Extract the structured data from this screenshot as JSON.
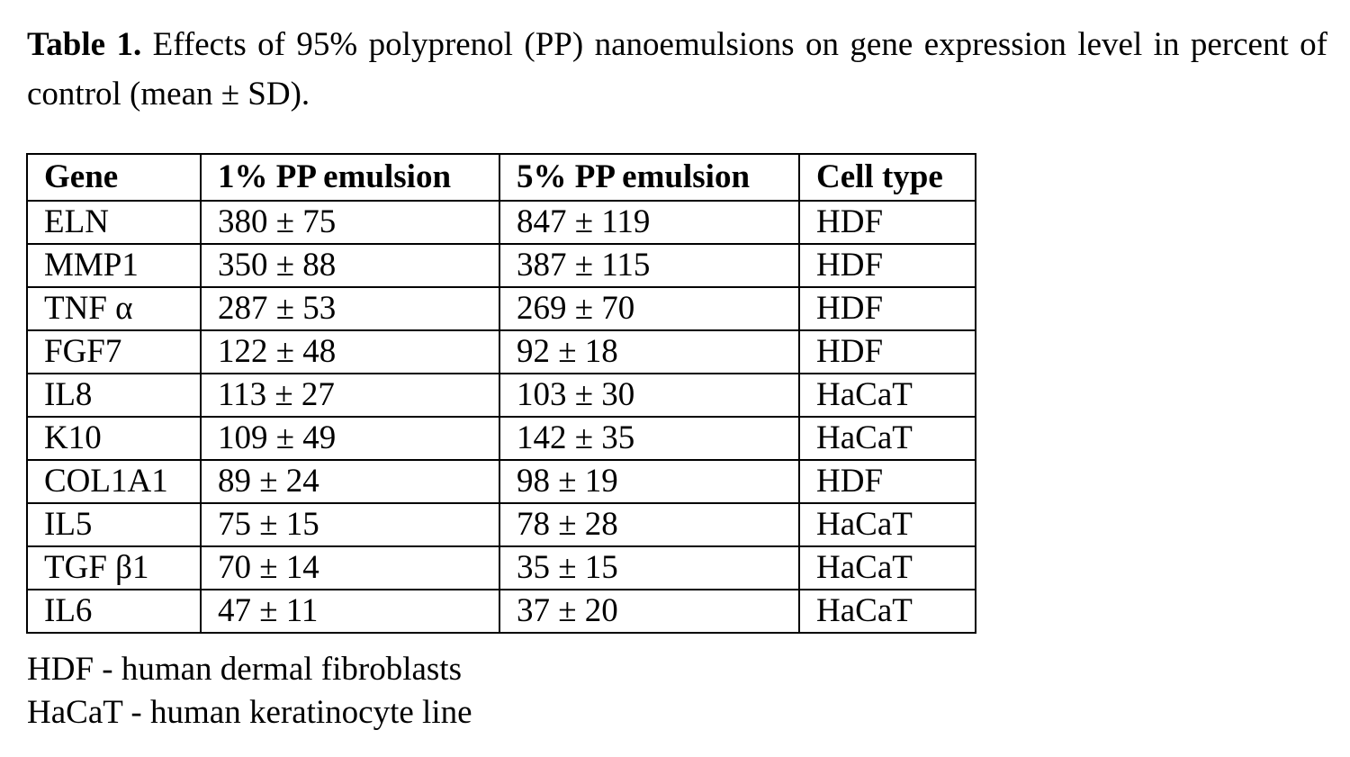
{
  "caption": {
    "label": "Table 1.",
    "text": " Effects of 95% polyprenol (PP) nanoemulsions on gene expression level in percent of control (mean ± SD)."
  },
  "table": {
    "headers": [
      "Gene",
      "1% PP emulsion",
      "5% PP emulsion",
      "Cell type"
    ],
    "rows": [
      [
        "ELN",
        "380 ± 75",
        "847 ± 119",
        "HDF"
      ],
      [
        "MMP1",
        "350 ± 88",
        "387 ± 115",
        "HDF"
      ],
      [
        "TNF α",
        "287 ± 53",
        "269 ± 70",
        "HDF"
      ],
      [
        "FGF7",
        "122 ± 48",
        "92 ± 18",
        "HDF"
      ],
      [
        "IL8",
        "113 ± 27",
        "103 ± 30",
        "HaCaT"
      ],
      [
        "K10",
        "109 ± 49",
        "142 ± 35",
        "HaCaT"
      ],
      [
        "COL1A1",
        "89 ± 24",
        "98 ± 19",
        "HDF"
      ],
      [
        "IL5",
        "75 ± 15",
        "78 ± 28",
        "HaCaT"
      ],
      [
        "TGF β1",
        "70 ± 14",
        "35 ± 15",
        "HaCaT"
      ],
      [
        "IL6",
        "47 ± 11",
        "37 ± 20",
        "HaCaT"
      ]
    ]
  },
  "notes": [
    "HDF - human dermal fibroblasts",
    "HaCaT - human keratinocyte line"
  ]
}
